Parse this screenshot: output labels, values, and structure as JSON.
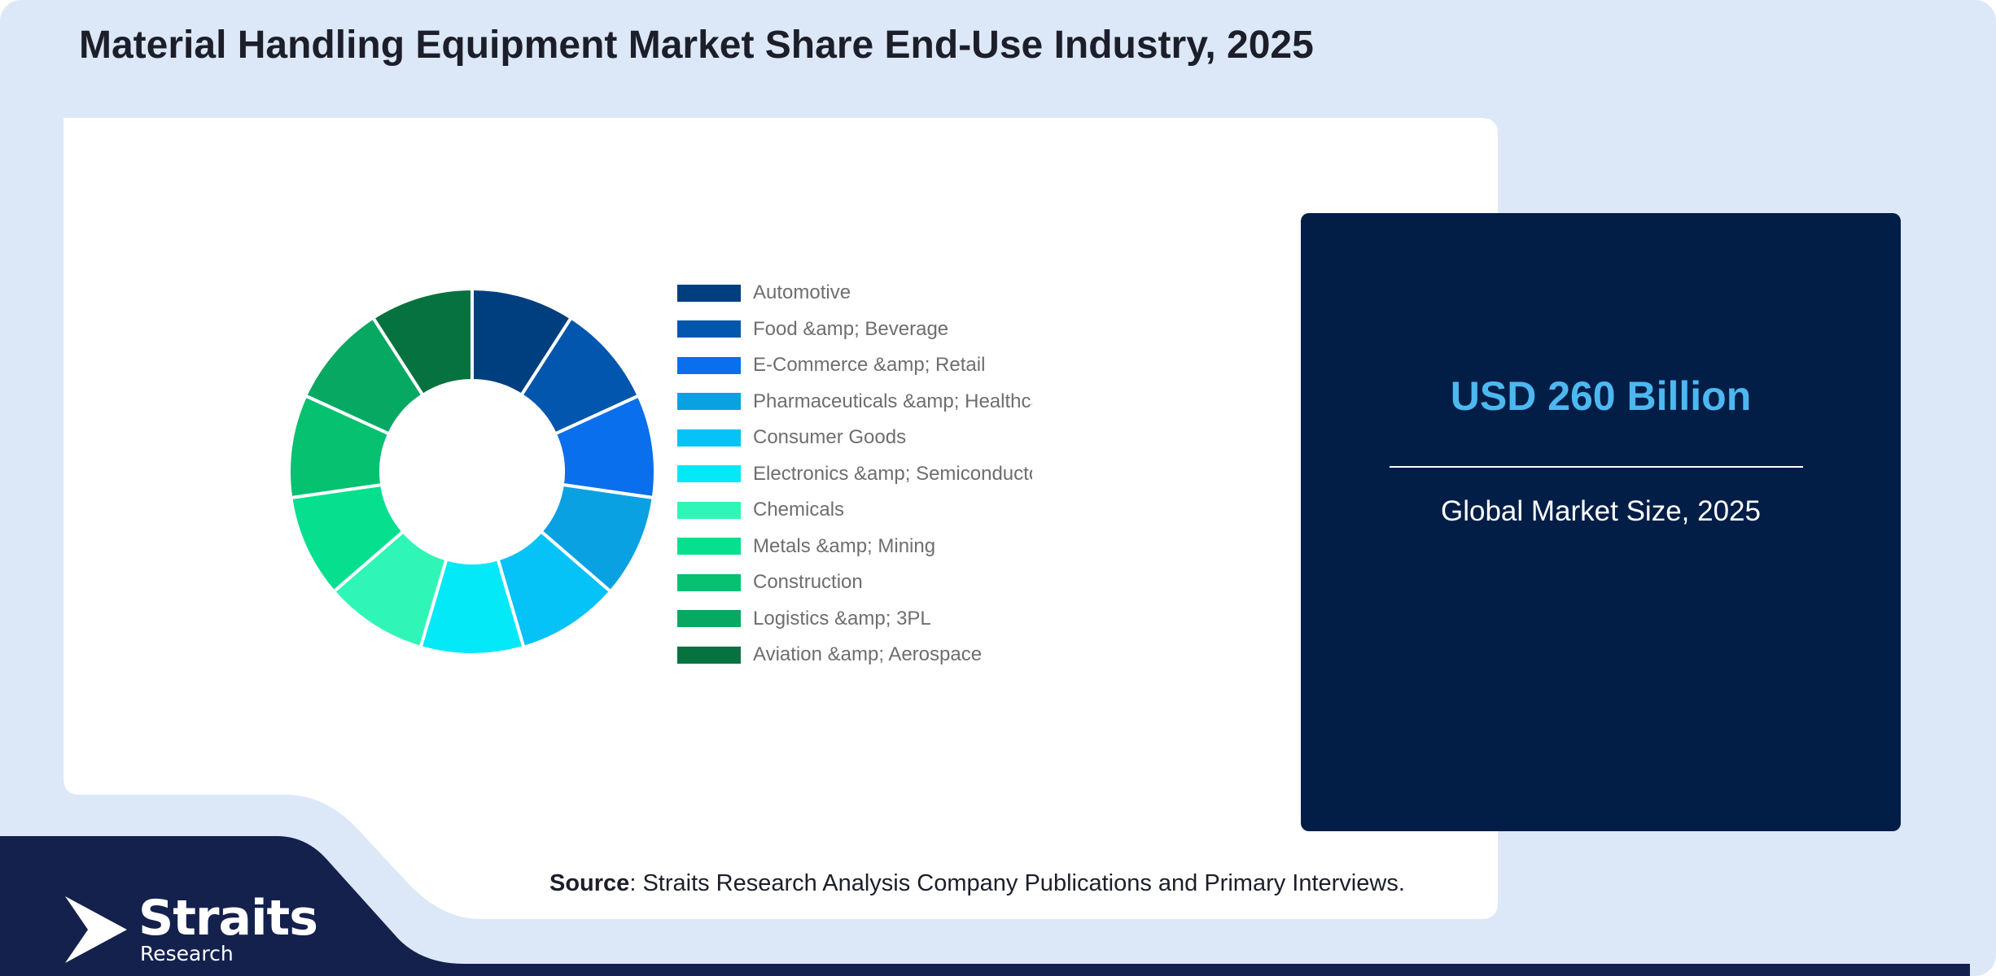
{
  "page": {
    "title": "Material Handling Equipment Market Share End-Use Industry, 2025"
  },
  "stat": {
    "value": "USD 260 Billion",
    "caption": "Global Market Size, 2025"
  },
  "source": {
    "label": "Source",
    "text": ": Straits Research Analysis Company Publications and Primary Interviews."
  },
  "logo": {
    "name": "Straits",
    "sub": "Research",
    "icon": "straits-arrow-icon"
  },
  "colors": {
    "page_bg": "#dce8f8",
    "card_bg": "#ffffff",
    "stat_bg": "#021e47",
    "footer_bg": "#14214d",
    "stat_accent": "#4db8f0"
  },
  "chart_data": {
    "type": "pie",
    "variant": "donut",
    "categories": [
      "Automotive",
      "Food &amp; Beverage",
      "E-Commerce &amp; Retail",
      "Pharmaceuticals &amp; Healthcare",
      "Consumer Goods",
      "Electronics &amp; Semiconductors",
      "Chemicals",
      "Metals &amp; Mining",
      "Construction",
      "Logistics &amp; 3PL",
      "Aviation &amp; Aerospace"
    ],
    "values": [
      9.09,
      9.09,
      9.09,
      9.09,
      9.09,
      9.09,
      9.09,
      9.09,
      9.09,
      9.09,
      9.09
    ],
    "colors": [
      "#003f7f",
      "#0356ad",
      "#0a6fec",
      "#0aa1e3",
      "#05c2f7",
      "#03e9f7",
      "#2ff5b6",
      "#06e08e",
      "#06c170",
      "#07a862",
      "#06723f"
    ],
    "legend_position": "right"
  }
}
